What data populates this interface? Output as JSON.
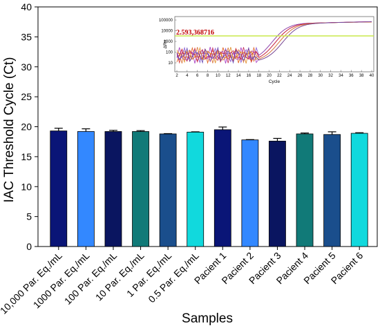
{
  "chart_data": {
    "type": "bar",
    "xlabel": "Samples",
    "ylabel": "IAC Threshold Cycle (Ct)",
    "ylim": [
      0,
      40
    ],
    "yticks": [
      0,
      5,
      10,
      15,
      20,
      25,
      30,
      35,
      40
    ],
    "categories": [
      "10,000 Par. Eq./mL",
      "1000 Par. Eq./mL",
      "100 Par. Eq./mL",
      "10 Par. Eq./mL",
      "1 Par. Eq./mL",
      "0.5 Par. Eq./mL",
      "Pacient 1",
      "Pacient 2",
      "Pacient 3",
      "Pacient 4",
      "Pacient 5",
      "Pacient 6"
    ],
    "values": [
      19.3,
      19.2,
      19.2,
      19.2,
      18.8,
      19.1,
      19.5,
      17.8,
      17.6,
      18.8,
      18.7,
      18.9
    ],
    "errors": [
      0.45,
      0.45,
      0.2,
      0.15,
      0.05,
      0.05,
      0.45,
      0.05,
      0.45,
      0.15,
      0.45,
      0.1
    ],
    "colors": [
      "#0a1577",
      "#3388ff",
      "#0a1560",
      "#117a78",
      "#1a4e8c",
      "#11d9dd",
      "#0a1577",
      "#3388ff",
      "#0a1560",
      "#117a78",
      "#1a4e8c",
      "#11d9dd"
    ],
    "grid": false,
    "inset": {
      "type": "line",
      "xlabel": "Cycle",
      "ylabel": "ΔRn",
      "xticks": [
        "2",
        "4",
        "6",
        "8",
        "10",
        "12",
        "14",
        "16",
        "18",
        "20",
        "22",
        "24",
        "26",
        "28",
        "30",
        "32",
        "34",
        "36",
        "38",
        "40"
      ],
      "yticks": [
        "100000",
        "10000",
        "1000",
        "100",
        "10"
      ],
      "threshold_label": "2.593,368716",
      "threshold_color": "#c8e84a",
      "curve_colors": [
        "#d42020",
        "#e05510",
        "#a030c0",
        "#d87030",
        "#8050d0",
        "#c01850",
        "#e08a20",
        "#6040b0"
      ]
    }
  }
}
